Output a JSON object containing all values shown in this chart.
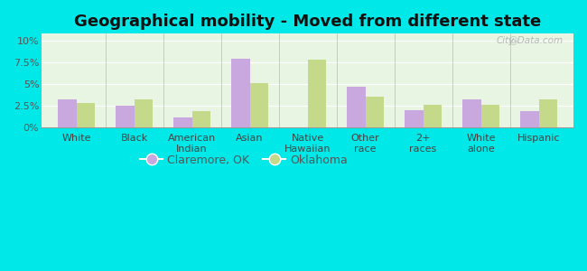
{
  "title": "Geographical mobility - Moved from different state",
  "categories": [
    "White",
    "Black",
    "American\nIndian",
    "Asian",
    "Native\nHawaiian",
    "Other\nrace",
    "2+\nraces",
    "White\nalone",
    "Hispanic"
  ],
  "claremore": [
    3.2,
    2.5,
    1.2,
    7.9,
    0.0,
    4.7,
    2.0,
    3.2,
    1.9
  ],
  "oklahoma": [
    2.8,
    3.2,
    1.9,
    5.1,
    7.8,
    3.6,
    2.6,
    2.6,
    3.2
  ],
  "claremore_color": "#c9a8e0",
  "oklahoma_color": "#c5d98a",
  "outer_bg": "#00e8e8",
  "plot_bg_color": "#e8f5e2",
  "yticks": [
    0,
    2.5,
    5.0,
    7.5,
    10.0
  ],
  "ytick_labels": [
    "0%",
    "2.5%",
    "5%",
    "7.5%",
    "10%"
  ],
  "ylim": [
    0,
    10.8
  ],
  "bar_width": 0.32,
  "title_fontsize": 13,
  "legend_fontsize": 9,
  "tick_fontsize": 8
}
